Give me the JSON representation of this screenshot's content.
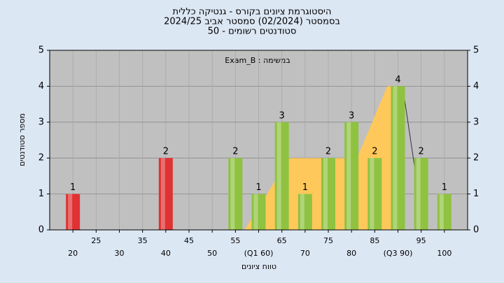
{
  "chart_data": {
    "type": "bar",
    "title": "היסטוגרמת ציונים בקורס - גנטיקה כללית",
    "subtitle": "בסמסטר  (02/2024)  סמסטר אביב 2024/25",
    "subtitle2": "סטודנטים רשומים - 50",
    "annotation": "במשימה : Exam_B",
    "xlabel": "טווח ציונים",
    "ylabel": "מספר סטודנטים",
    "x": [
      20,
      25,
      30,
      35,
      40,
      45,
      50,
      55,
      60,
      65,
      70,
      75,
      80,
      85,
      90,
      95,
      100
    ],
    "values": [
      1,
      0,
      0,
      0,
      2,
      0,
      0,
      2,
      1,
      3,
      1,
      2,
      3,
      2,
      4,
      2,
      1
    ],
    "colors": [
      "#e03232",
      "#e03232",
      "#e03232",
      "#e03232",
      "#e03232",
      "#e03232",
      "#e03232",
      "#8fc240",
      "#8fc240",
      "#8fc240",
      "#8fc240",
      "#8fc240",
      "#8fc240",
      "#8fc240",
      "#8fc240",
      "#8fc240",
      "#8fc240"
    ],
    "area": {
      "color": "#ffc85a",
      "x": [
        57,
        66.6,
        81.2,
        87.7,
        91,
        91
      ],
      "y": [
        0,
        2,
        2,
        4,
        4,
        0
      ]
    },
    "line": {
      "color": "#333333",
      "x": [
        91,
        94
      ],
      "y": [
        4,
        1.4
      ]
    },
    "xlim": [
      15,
      105
    ],
    "xticks": [
      20,
      25,
      30,
      35,
      40,
      45,
      50,
      55,
      {
        "value": 60,
        "label": "(Q1 60)"
      },
      65,
      70,
      75,
      80,
      85,
      {
        "value": 90,
        "label": "(Q3 90)"
      },
      95,
      100
    ],
    "ylim": [
      0,
      5
    ],
    "yticks": [
      0,
      1,
      2,
      3,
      4,
      5
    ],
    "grid": true
  }
}
